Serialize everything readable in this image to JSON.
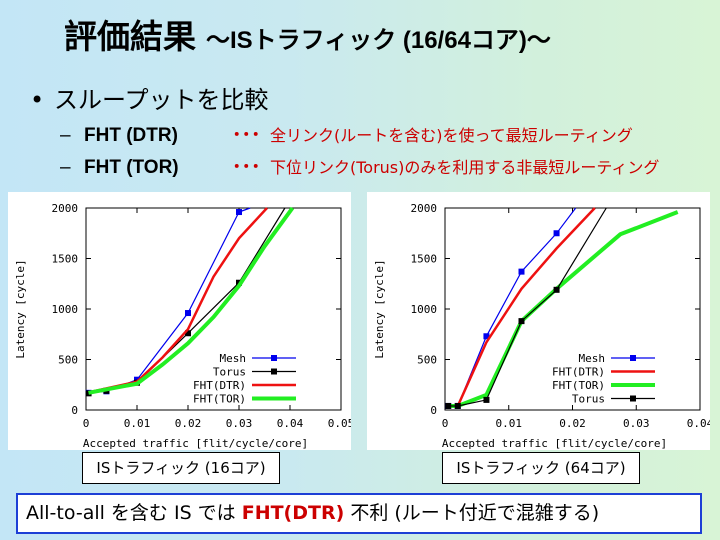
{
  "title": {
    "main": "評価結果",
    "sub": "～ISトラフィック (16/64コア)～"
  },
  "bullet": {
    "marker": "•",
    "text": "スループットを比較"
  },
  "subitems": [
    {
      "dash": "–",
      "label": "FHT (DTR)",
      "dots": "･･･",
      "desc": "全リンク(ルートを含む)を使って最短ルーティング"
    },
    {
      "dash": "–",
      "label": "FHT (TOR)",
      "dots": "･･･",
      "desc": "下位リンク(Torus)のみを利用する非最短ルーティング"
    }
  ],
  "captions": [
    "ISトラフィック (16コア)",
    "ISトラフィック (64コア)"
  ],
  "conclusion": {
    "prefix": "All-to-all を含む IS では ",
    "highlight": "FHT(DTR)",
    "suffix": " 不利 (ルート付近で混雑する)"
  },
  "colors": {
    "mesh": "#0000ee",
    "torus": "#000000",
    "fht_dtr": "#ee1111",
    "fht_tor": "#22ee22",
    "border": "#1d3fd6",
    "highlight": "#cc0000"
  },
  "chart_data": [
    {
      "type": "line",
      "title": "ISトラフィック (16コア)",
      "xlabel": "Accepted traffic [flit/cycle/core]",
      "ylabel": "Latency [cycle]",
      "xlim": [
        0,
        0.05
      ],
      "ylim": [
        0,
        2000
      ],
      "xticks": [
        {
          "v": 0,
          "label": "0"
        },
        {
          "v": 0.01,
          "label": "0.01"
        },
        {
          "v": 0.02,
          "label": "0.02"
        },
        {
          "v": 0.03,
          "label": "0.03"
        },
        {
          "v": 0.04,
          "label": "0.04"
        },
        {
          "v": 0.05,
          "label": "0.05"
        }
      ],
      "yticks": [
        {
          "v": 0,
          "label": "0"
        },
        {
          "v": 500,
          "label": "500"
        },
        {
          "v": 1000,
          "label": "1000"
        },
        {
          "v": 1500,
          "label": "1500"
        },
        {
          "v": 2000,
          "label": "2000"
        }
      ],
      "legend_position": "bottom-right",
      "series": [
        {
          "name": "Mesh",
          "key": "mesh",
          "marker": true,
          "points": [
            [
              0.0005,
              170
            ],
            [
              0.004,
              185
            ],
            [
              0.01,
              300
            ],
            [
              0.02,
              960
            ],
            [
              0.03,
              1960
            ],
            [
              0.0322,
              2000
            ]
          ]
        },
        {
          "name": "Torus",
          "key": "torus",
          "marker": true,
          "points": [
            [
              0.0005,
              165
            ],
            [
              0.004,
              190
            ],
            [
              0.01,
              270
            ],
            [
              0.02,
              760
            ],
            [
              0.03,
              1260
            ],
            [
              0.039,
              2000
            ]
          ]
        },
        {
          "name": "FHT(DTR)",
          "key": "fht_dtr",
          "marker": false,
          "points": [
            [
              0.0005,
              175
            ],
            [
              0.01,
              280
            ],
            [
              0.015,
              520
            ],
            [
              0.02,
              800
            ],
            [
              0.025,
              1320
            ],
            [
              0.03,
              1700
            ],
            [
              0.0355,
              2000
            ]
          ]
        },
        {
          "name": "FHT(TOR)",
          "key": "fht_tor",
          "marker": false,
          "points": [
            [
              0.0005,
              170
            ],
            [
              0.01,
              260
            ],
            [
              0.015,
              450
            ],
            [
              0.02,
              660
            ],
            [
              0.025,
              920
            ],
            [
              0.03,
              1230
            ],
            [
              0.035,
              1620
            ],
            [
              0.0405,
              2000
            ]
          ]
        }
      ]
    },
    {
      "type": "line",
      "title": "ISトラフィック (64コア)",
      "xlabel": "Accepted traffic [flit/cycle/core]",
      "ylabel": "Latency [cycle]",
      "xlim": [
        0,
        0.04
      ],
      "ylim": [
        0,
        2000
      ],
      "xticks": [
        {
          "v": 0,
          "label": "0"
        },
        {
          "v": 0.01,
          "label": "0.01"
        },
        {
          "v": 0.02,
          "label": "0.02"
        },
        {
          "v": 0.03,
          "label": "0.03"
        },
        {
          "v": 0.04,
          "label": "0.04"
        }
      ],
      "yticks": [
        {
          "v": 0,
          "label": "0"
        },
        {
          "v": 500,
          "label": "500"
        },
        {
          "v": 1000,
          "label": "1000"
        },
        {
          "v": 1500,
          "label": "1500"
        },
        {
          "v": 2000,
          "label": "2000"
        }
      ],
      "legend_position": "bottom-right",
      "series": [
        {
          "name": "Mesh",
          "key": "mesh",
          "marker": true,
          "points": [
            [
              0.0005,
              40
            ],
            [
              0.002,
              40
            ],
            [
              0.0065,
              730
            ],
            [
              0.012,
              1370
            ],
            [
              0.0175,
              1750
            ],
            [
              0.0205,
              2000
            ]
          ]
        },
        {
          "name": "FHT(DTR)",
          "key": "fht_dtr",
          "marker": false,
          "points": [
            [
              0.0005,
              40
            ],
            [
              0.002,
              40
            ],
            [
              0.0065,
              670
            ],
            [
              0.012,
              1200
            ],
            [
              0.0175,
              1600
            ],
            [
              0.0235,
              2000
            ]
          ]
        },
        {
          "name": "FHT(TOR)",
          "key": "fht_tor",
          "marker": false,
          "points": [
            [
              0.0005,
              40
            ],
            [
              0.002,
              40
            ],
            [
              0.0065,
              150
            ],
            [
              0.012,
              880
            ],
            [
              0.0175,
              1200
            ],
            [
              0.0275,
              1740
            ],
            [
              0.0365,
              1960
            ]
          ]
        },
        {
          "name": "Torus",
          "key": "torus",
          "marker": true,
          "points": [
            [
              0.0005,
              40
            ],
            [
              0.002,
              40
            ],
            [
              0.0065,
              100
            ],
            [
              0.012,
              880
            ],
            [
              0.0175,
              1190
            ],
            [
              0.0253,
              2000
            ]
          ]
        }
      ]
    }
  ]
}
